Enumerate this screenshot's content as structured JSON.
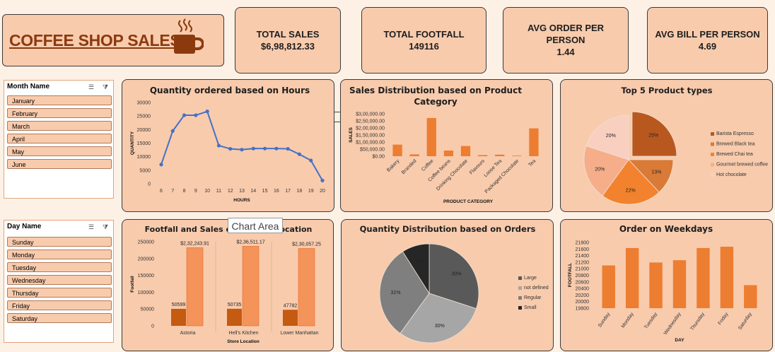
{
  "title": "COFFEE SHOP SALES",
  "kpis": [
    {
      "label": "TOTAL SALES",
      "value": "$6,98,812.33"
    },
    {
      "label": "TOTAL FOOTFALL",
      "value": "149116"
    },
    {
      "label": "AVG ORDER PER PERSON",
      "value": "1.44"
    },
    {
      "label": "AVG BILL PER PERSON",
      "value": "4.69"
    }
  ],
  "month_slicer": {
    "header": "Month Name",
    "items": [
      "January",
      "February",
      "March",
      "April",
      "May",
      "June"
    ]
  },
  "day_slicer": {
    "header": "Day Name",
    "items": [
      "Sunday",
      "Monday",
      "Tuesday",
      "Wednesday",
      "Thursday",
      "Friday",
      "Saturday"
    ]
  },
  "tooltip": "Chart Area",
  "colors": {
    "accent": "#ed7d31",
    "brand": "#8b3a0e",
    "line": "#4472c4",
    "panel": "#f8cbad"
  },
  "chart_data": [
    {
      "type": "line",
      "title": "Quantity ordered based on Hours",
      "xlabel": "HOURS",
      "ylabel": "QUANTITY",
      "x": [
        6,
        7,
        8,
        9,
        10,
        11,
        12,
        13,
        14,
        15,
        16,
        17,
        18,
        19,
        20
      ],
      "values": [
        7100,
        19500,
        25300,
        25300,
        26700,
        14100,
        12900,
        12600,
        13000,
        13000,
        13000,
        12900,
        10900,
        8600,
        1200
      ],
      "ylim": [
        0,
        30000
      ],
      "yticks": [
        0,
        5000,
        10000,
        15000,
        20000,
        25000,
        30000
      ],
      "grid": false
    },
    {
      "type": "bar",
      "title": "Sales Distribution based on Product Category",
      "xlabel": "PRODUCT CATEGORY",
      "ylabel": "SALES",
      "categories": [
        "Bakery",
        "Branded",
        "Coffee",
        "Coffee beans",
        "Drinking Chocolate",
        "Flavours",
        "Loose Tea",
        "Packaged Chocolate",
        "Tea"
      ],
      "values": [
        82000,
        13000,
        270000,
        40000,
        72000,
        8000,
        11000,
        4000,
        197000
      ],
      "ylim": [
        0,
        300000
      ],
      "yticks": [
        "$0.00",
        "$50,000.00",
        "$1,00,000.00",
        "$1,50,000.00",
        "$2,00,000.00",
        "$2,50,000.00",
        "$3,00,000.00"
      ]
    },
    {
      "type": "pie",
      "title": "Top 5 Product types",
      "categories": [
        "Barista Espresso",
        "Brewed Black tea",
        "Brewed Chai tea",
        "Gourmet brewed coffee",
        "Hot chocolate"
      ],
      "values": [
        25,
        13,
        22,
        20,
        20
      ],
      "labels": [
        "25%",
        "13%",
        "22%",
        "20%",
        "20%"
      ],
      "colors": [
        "#b8581f",
        "#d97a36",
        "#f2822e",
        "#f6ae8a",
        "#f9cfbf"
      ],
      "legend": "right"
    },
    {
      "type": "bar",
      "title": "Footfall and Sales over Store Location",
      "xlabel": "Store Location",
      "ylabel": "Footfall",
      "categories": [
        "Astoria",
        "Hell's Kitchen",
        "Lower Manhattan"
      ],
      "series": [
        {
          "values": [
            50599,
            50735,
            47782
          ],
          "labels": [
            "50599",
            "50735",
            "47782"
          ]
        },
        {
          "values": [
            232243.91,
            236511.17,
            230057.25
          ],
          "labels": [
            "$2,32,243.91",
            "$2,36,511.17",
            "$2,30,057.25"
          ]
        }
      ],
      "ylim": [
        0,
        250000
      ],
      "yticks": [
        0,
        50000,
        100000,
        150000,
        200000,
        250000
      ]
    },
    {
      "type": "pie",
      "title": "Quantity Distribution based on Orders",
      "categories": [
        "Large",
        "not defined",
        "Regular",
        "Small"
      ],
      "values": [
        30,
        30,
        31,
        9
      ],
      "labels": [
        "30%",
        "30%",
        "31%",
        "9%"
      ],
      "colors": [
        "#595959",
        "#a6a6a6",
        "#7f7f7f",
        "#262626"
      ],
      "legend": "right"
    },
    {
      "type": "bar",
      "title": "Order on Weekdays",
      "xlabel": "DAY",
      "ylabel": "FOOTFALL",
      "categories": [
        "Sunday",
        "Monday",
        "Tuesday",
        "Wednesday",
        "Thursday",
        "Friday",
        "Saturday"
      ],
      "values": [
        21100,
        21630,
        21190,
        21260,
        21630,
        21670,
        20500
      ],
      "ylim": [
        19800,
        21800
      ],
      "yticks": [
        19800,
        20000,
        20200,
        20400,
        20600,
        20800,
        21000,
        21200,
        21400,
        21600,
        21800
      ]
    }
  ]
}
